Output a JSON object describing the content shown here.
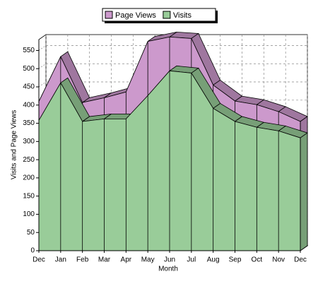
{
  "chart_data": {
    "type": "area3d",
    "x_label": "Month",
    "y_label": "Visits and Page Views",
    "categories": [
      "Dec",
      "Jan",
      "Feb",
      "Mar",
      "Apr",
      "May",
      "Jun",
      "Jul",
      "Aug",
      "Sep",
      "Oct",
      "Nov",
      "Dec"
    ],
    "series": [
      {
        "name": "Page Views",
        "color": "#cc99cc",
        "values": [
          410,
          533,
          407,
          420,
          436,
          575,
          587,
          583,
          455,
          411,
          401,
          382,
          355
        ]
      },
      {
        "name": "Visits",
        "color": "#99cc99",
        "values": [
          358,
          461,
          355,
          362,
          362,
          426,
          494,
          488,
          391,
          355,
          339,
          329,
          310
        ]
      }
    ],
    "ylim": [
      0,
      580
    ],
    "yticks": [
      0,
      50,
      100,
      150,
      200,
      250,
      300,
      350,
      400,
      450,
      500,
      550
    ],
    "grid": true,
    "legend": "top"
  }
}
